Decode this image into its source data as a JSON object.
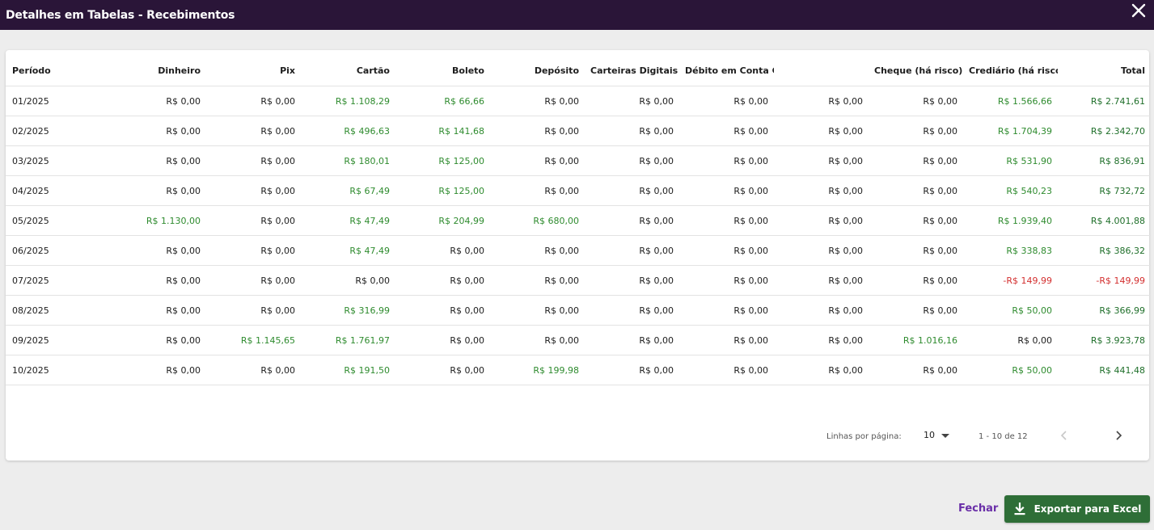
{
  "modal": {
    "title": "Detalhes em Tabelas - Recebimentos"
  },
  "table": {
    "headers": [
      "Período",
      "Dinheiro",
      "Pix",
      "Cartão",
      "Boleto",
      "Depósito",
      "Carteiras Digitais",
      "Débito em Conta Convênio/...",
      "",
      "Cheque (há risco)",
      "Crediário (há risco)",
      "Total"
    ],
    "rows": [
      [
        "01/2025",
        "R$ 0,00",
        "R$ 0,00",
        "R$ 1.108,29",
        "R$ 66,66",
        "R$ 0,00",
        "R$ 0,00",
        "R$ 0,00",
        "R$ 0,00",
        "R$ 0,00",
        "R$ 1.566,66",
        "R$ 2.741,61"
      ],
      [
        "02/2025",
        "R$ 0,00",
        "R$ 0,00",
        "R$ 496,63",
        "R$ 141,68",
        "R$ 0,00",
        "R$ 0,00",
        "R$ 0,00",
        "R$ 0,00",
        "R$ 0,00",
        "R$ 1.704,39",
        "R$ 2.342,70"
      ],
      [
        "03/2025",
        "R$ 0,00",
        "R$ 0,00",
        "R$ 180,01",
        "R$ 125,00",
        "R$ 0,00",
        "R$ 0,00",
        "R$ 0,00",
        "R$ 0,00",
        "R$ 0,00",
        "R$ 531,90",
        "R$ 836,91"
      ],
      [
        "04/2025",
        "R$ 0,00",
        "R$ 0,00",
        "R$ 67,49",
        "R$ 125,00",
        "R$ 0,00",
        "R$ 0,00",
        "R$ 0,00",
        "R$ 0,00",
        "R$ 0,00",
        "R$ 540,23",
        "R$ 732,72"
      ],
      [
        "05/2025",
        "R$ 1.130,00",
        "R$ 0,00",
        "R$ 47,49",
        "R$ 204,99",
        "R$ 680,00",
        "R$ 0,00",
        "R$ 0,00",
        "R$ 0,00",
        "R$ 0,00",
        "R$ 1.939,40",
        "R$ 4.001,88"
      ],
      [
        "06/2025",
        "R$ 0,00",
        "R$ 0,00",
        "R$ 47,49",
        "R$ 0,00",
        "R$ 0,00",
        "R$ 0,00",
        "R$ 0,00",
        "R$ 0,00",
        "R$ 0,00",
        "R$ 338,83",
        "R$ 386,32"
      ],
      [
        "07/2025",
        "R$ 0,00",
        "R$ 0,00",
        "R$ 0,00",
        "R$ 0,00",
        "R$ 0,00",
        "R$ 0,00",
        "R$ 0,00",
        "R$ 0,00",
        "R$ 0,00",
        "-R$ 149,99",
        "-R$ 149,99"
      ],
      [
        "08/2025",
        "R$ 0,00",
        "R$ 0,00",
        "R$ 316,99",
        "R$ 0,00",
        "R$ 0,00",
        "R$ 0,00",
        "R$ 0,00",
        "R$ 0,00",
        "R$ 0,00",
        "R$ 50,00",
        "R$ 366,99"
      ],
      [
        "09/2025",
        "R$ 0,00",
        "R$ 1.145,65",
        "R$ 1.761,97",
        "R$ 0,00",
        "R$ 0,00",
        "R$ 0,00",
        "R$ 0,00",
        "R$ 0,00",
        "R$ 1.016,16",
        "R$ 0,00",
        "R$ 3.923,78"
      ],
      [
        "10/2025",
        "R$ 0,00",
        "R$ 0,00",
        "R$ 191,50",
        "R$ 0,00",
        "R$ 199,98",
        "R$ 0,00",
        "R$ 0,00",
        "R$ 0,00",
        "R$ 0,00",
        "R$ 50,00",
        "R$ 441,48"
      ]
    ]
  },
  "pagination": {
    "rows_label": "Linhas por página:",
    "rows_value": "10",
    "range": "1 - 10 de 12"
  },
  "actions": {
    "close_label": "Fechar",
    "export_label": "Exportar para Excel"
  },
  "colors": {
    "header_bg": "#2a1538",
    "positive": "#2e8b2e",
    "negative": "#d32f2f",
    "export_bg": "#2e6e37",
    "link": "#6a2fa8"
  }
}
